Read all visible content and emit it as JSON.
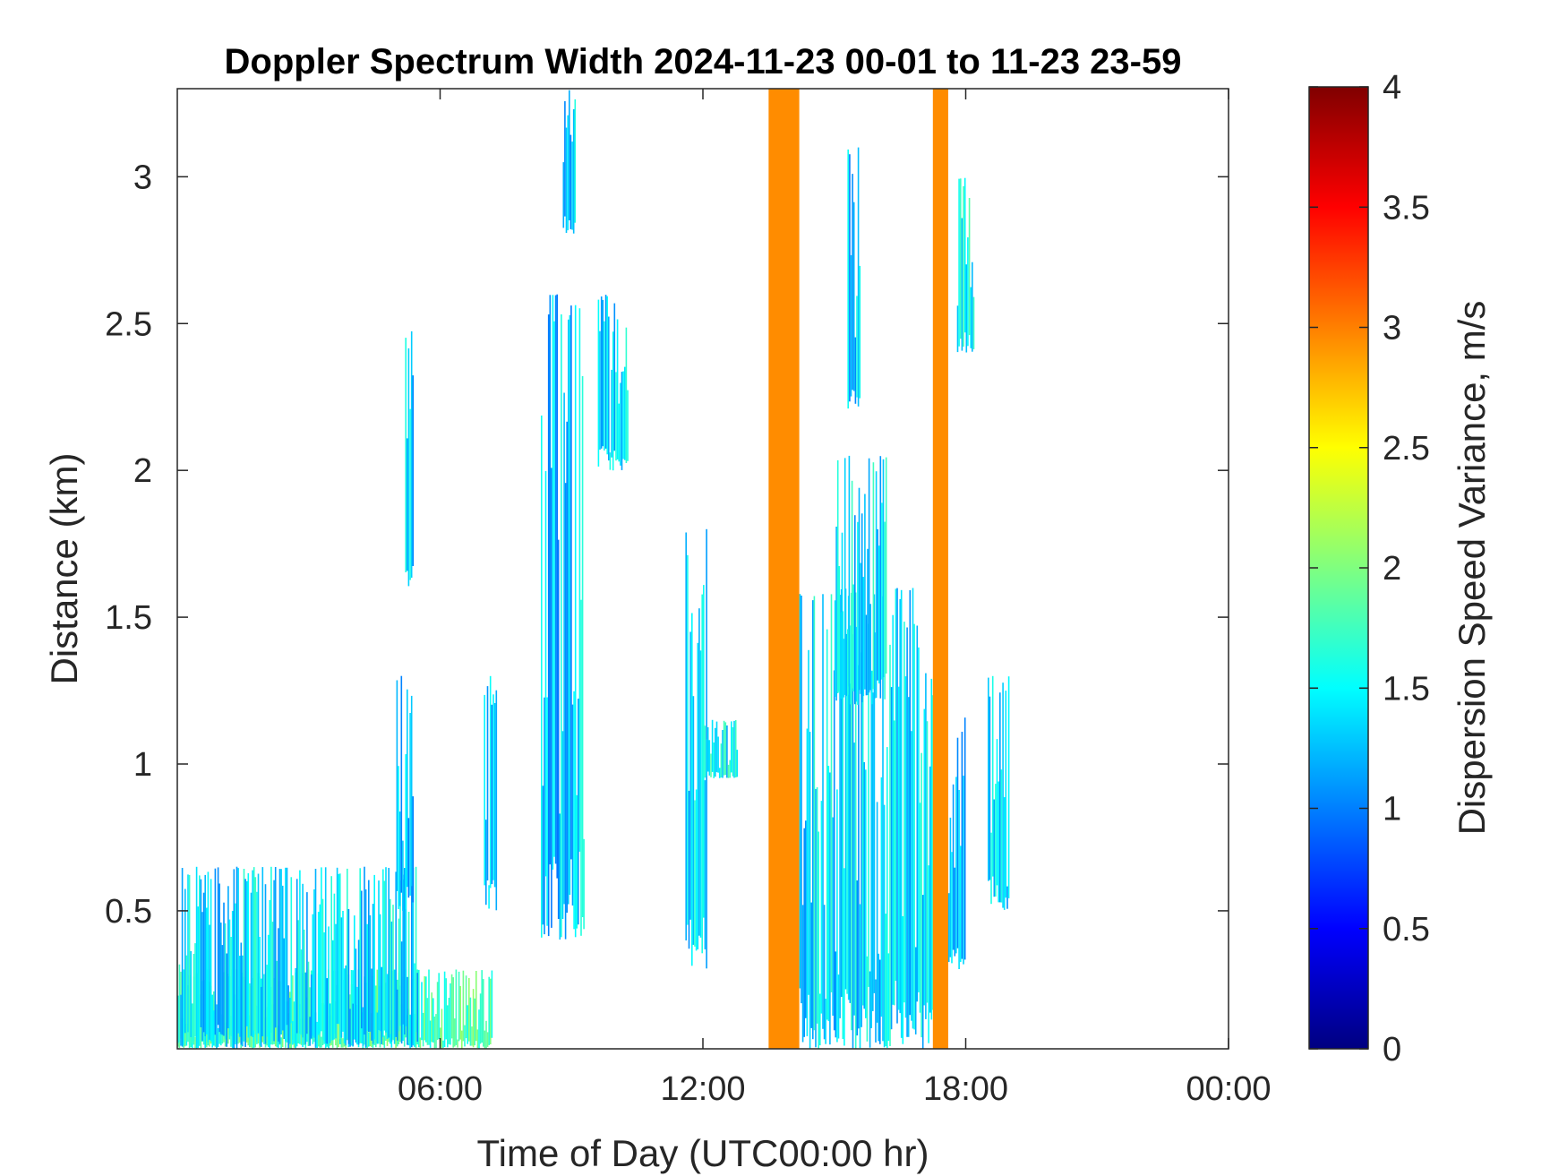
{
  "chart_data": {
    "type": "heatmap",
    "title": "Doppler Spectrum Width 2024-11-23 00-01 to 11-23 23-59",
    "xlabel": "Time of Day (UTC00:00 hr)",
    "ylabel": "Distance (km)",
    "xlim": [
      0,
      24
    ],
    "ylim": [
      0.03,
      3.3
    ],
    "x_tick_values": [
      6,
      12,
      18,
      24
    ],
    "x_tick_labels": [
      "06:00",
      "12:00",
      "18:00",
      "00:00"
    ],
    "y_tick_values": [
      0.5,
      1,
      1.5,
      2,
      2.5,
      3
    ],
    "y_tick_labels": [
      "0.5",
      "1",
      "1.5",
      "2",
      "2.5",
      "3"
    ],
    "colorbar": {
      "label": "Dispersion Speed Variance, m/s",
      "range": [
        0,
        4
      ],
      "tick_values": [
        0,
        0.5,
        1,
        1.5,
        2,
        2.5,
        3,
        3.5,
        4
      ],
      "tick_labels": [
        "0",
        "0.5",
        "1",
        "1.5",
        "2",
        "2.5",
        "3",
        "3.5",
        "4"
      ],
      "colormap": "jet"
    },
    "saturated_bands": [
      {
        "t_start": 13.5,
        "t_end": 14.2,
        "value": 2.95
      },
      {
        "t_start": 17.25,
        "t_end": 17.6,
        "value": 2.95
      }
    ],
    "echo_regions": [
      {
        "t_start": 0.0,
        "t_end": 7.2,
        "h_bottom": 0.03,
        "h_top": 0.3,
        "value": 1.75
      },
      {
        "t_start": 0.0,
        "t_end": 5.5,
        "h_bottom": 0.03,
        "h_top": 0.65,
        "value": 1.4
      },
      {
        "t_start": 5.2,
        "t_end": 5.4,
        "h_bottom": 1.6,
        "h_top": 2.5,
        "value": 1.3
      },
      {
        "t_start": 5.0,
        "t_end": 5.4,
        "h_bottom": 0.5,
        "h_top": 1.3,
        "value": 1.2
      },
      {
        "t_start": 8.3,
        "t_end": 9.3,
        "h_bottom": 0.4,
        "h_top": 2.6,
        "value": 1.3
      },
      {
        "t_start": 8.8,
        "t_end": 9.1,
        "h_bottom": 2.8,
        "h_top": 3.3,
        "value": 1.3
      },
      {
        "t_start": 9.6,
        "t_end": 10.3,
        "h_bottom": 2.0,
        "h_top": 2.6,
        "value": 1.4
      },
      {
        "t_start": 7.0,
        "t_end": 7.3,
        "h_bottom": 0.5,
        "h_top": 1.3,
        "value": 1.3
      },
      {
        "t_start": 11.6,
        "t_end": 12.1,
        "h_bottom": 0.3,
        "h_top": 1.8,
        "value": 1.35
      },
      {
        "t_start": 12.0,
        "t_end": 12.8,
        "h_bottom": 0.95,
        "h_top": 1.15,
        "value": 1.5
      },
      {
        "t_start": 14.2,
        "t_end": 17.3,
        "h_bottom": 0.03,
        "h_top": 1.6,
        "value": 1.4
      },
      {
        "t_start": 15.0,
        "t_end": 16.2,
        "h_bottom": 1.2,
        "h_top": 2.05,
        "value": 1.4
      },
      {
        "t_start": 15.3,
        "t_end": 15.6,
        "h_bottom": 2.2,
        "h_top": 3.1,
        "value": 1.3
      },
      {
        "t_start": 17.6,
        "t_end": 18.0,
        "h_bottom": 0.3,
        "h_top": 1.2,
        "value": 1.3
      },
      {
        "t_start": 17.8,
        "t_end": 18.2,
        "h_bottom": 2.4,
        "h_top": 3.0,
        "value": 1.5
      },
      {
        "t_start": 18.5,
        "t_end": 19.0,
        "h_bottom": 0.5,
        "h_top": 1.3,
        "value": 1.4
      }
    ]
  }
}
